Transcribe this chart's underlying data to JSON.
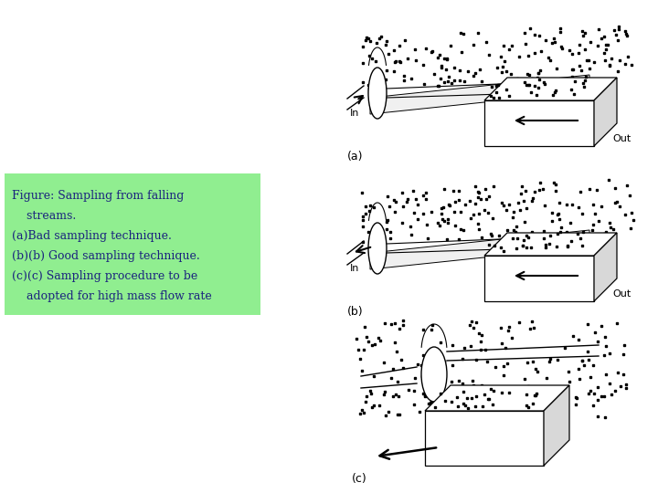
{
  "background_color": "#ffffff",
  "text_box_color": "#90EE90",
  "text_color": "#1a237e",
  "text_lines": [
    "Figure: Sampling from falling",
    "    streams.",
    "(a)Bad sampling technique.",
    "(b)(b) Good sampling technique.",
    "(c)(c) Sampling procedure to be",
    "    adopted for high mass flow rate"
  ],
  "label_a": "(a)",
  "label_b": "(b)",
  "label_c": "(c)",
  "label_in": "In",
  "label_out": "Out"
}
